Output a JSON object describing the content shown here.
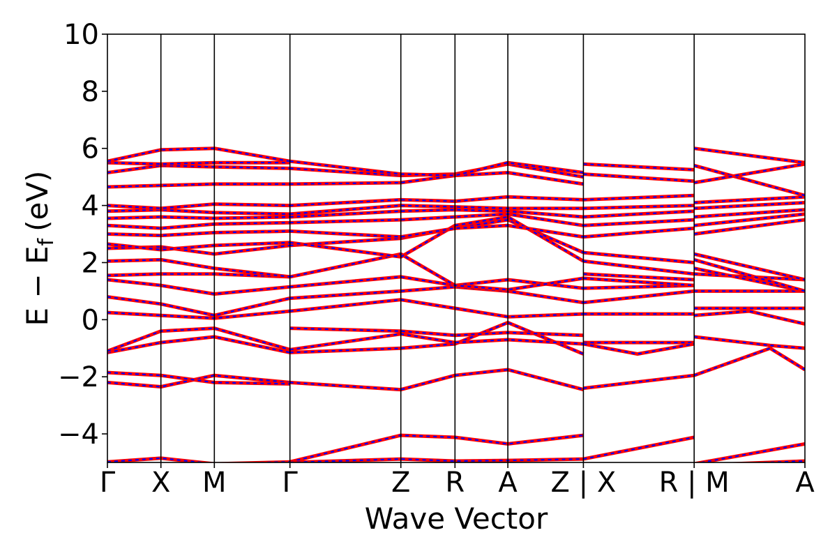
{
  "chart_data": {
    "type": "line",
    "xlabel": "Wave Vector",
    "ylabel_main": "E − E",
    "ylabel_sub": "f",
    "ylabel_unit": "(eV)",
    "ylim": [
      -5,
      10
    ],
    "yticks": [
      10,
      8,
      6,
      4,
      2,
      0,
      -2,
      -4
    ],
    "ytick_labels": [
      "10",
      "8",
      "6",
      "4",
      "2",
      "0",
      "−2",
      "−4"
    ],
    "xlim": [
      0,
      1
    ],
    "kpath_labels": [
      "Γ",
      "X",
      "M",
      "Γ",
      "Z",
      "R",
      "A",
      "Z | X",
      "R | M",
      "A"
    ],
    "kpath_positions": [
      0,
      0.0767,
      0.1533,
      0.2617,
      0.4207,
      0.4983,
      0.5741,
      0.6824,
      0.8412,
      1.0
    ],
    "line_colors": {
      "primary": "#ff0000",
      "overlay": "#0000ff"
    },
    "overlay_style": "dashed",
    "grid": false,
    "legend": "none",
    "bands": [
      {
        "x": [
          0,
          0.0767,
          0.1533,
          0.2617
        ],
        "y": [
          -4.98,
          -4.85,
          -5.05,
          -4.98
        ]
      },
      {
        "x": [
          0.2617,
          0.4207,
          0.4983,
          0.5741,
          0.6824
        ],
        "y": [
          -4.98,
          -4.05,
          -4.12,
          -4.35,
          -4.05
        ]
      },
      {
        "x": [
          0.2617,
          0.4207,
          0.4983,
          0.5741,
          0.6824
        ],
        "y": [
          -5.0,
          -4.88,
          -4.95,
          -4.93,
          -4.88
        ]
      },
      {
        "x": [
          0.6824,
          0.8412
        ],
        "y": [
          -4.88,
          -4.12
        ]
      },
      {
        "x": [
          0.8412,
          1.0
        ],
        "y": [
          -5.05,
          -4.35
        ]
      },
      {
        "x": [
          0.8412,
          1.0
        ],
        "y": [
          -5.1,
          -4.95
        ]
      },
      {
        "x": [
          0,
          0.0767,
          0.1533,
          0.2617
        ],
        "y": [
          -2.2,
          -2.35,
          -1.95,
          -2.2
        ]
      },
      {
        "x": [
          0,
          0.0767,
          0.1533,
          0.2617
        ],
        "y": [
          -1.85,
          -1.95,
          -2.2,
          -2.25
        ]
      },
      {
        "x": [
          0,
          0.0767,
          0.1533,
          0.2617
        ],
        "y": [
          -1.15,
          -0.8,
          -0.6,
          -1.15
        ]
      },
      {
        "x": [
          0,
          0.0767,
          0.1533,
          0.2617
        ],
        "y": [
          -1.1,
          -0.4,
          -0.3,
          -1.05
        ]
      },
      {
        "x": [
          0.2617,
          0.4207,
          0.4983,
          0.5741,
          0.6824
        ],
        "y": [
          -2.2,
          -2.45,
          -1.95,
          -1.75,
          -2.45
        ]
      },
      {
        "x": [
          0.2617,
          0.4207,
          0.4983,
          0.5741,
          0.6824
        ],
        "y": [
          -1.15,
          -1.0,
          -0.85,
          -0.1,
          -1.2
        ]
      },
      {
        "x": [
          0.2617,
          0.4207,
          0.4983,
          0.5741,
          0.6824
        ],
        "y": [
          -1.05,
          -0.5,
          -0.8,
          -0.7,
          -0.85
        ]
      },
      {
        "x": [
          0.2617,
          0.4207,
          0.4983,
          0.5741,
          0.6824
        ],
        "y": [
          -0.3,
          -0.4,
          -0.55,
          -0.45,
          -0.55
        ]
      },
      {
        "x": [
          0.6824,
          0.8412
        ],
        "y": [
          -2.4,
          -1.95
        ]
      },
      {
        "x": [
          0.6824,
          0.8412
        ],
        "y": [
          -0.8,
          -0.8
        ]
      },
      {
        "x": [
          0.6824,
          0.76,
          0.8412
        ],
        "y": [
          -0.85,
          -1.2,
          -0.85
        ]
      },
      {
        "x": [
          0.8412,
          0.95,
          1.0
        ],
        "y": [
          -1.95,
          -1.0,
          -1.75
        ]
      },
      {
        "x": [
          0.8412,
          0.95,
          1.0
        ],
        "y": [
          -0.6,
          -0.9,
          -1.0
        ]
      },
      {
        "x": [
          0.8412,
          0.92,
          1.0
        ],
        "y": [
          0.15,
          0.3,
          -0.15
        ]
      },
      {
        "x": [
          0,
          0.0767,
          0.1533,
          0.2617
        ],
        "y": [
          0.25,
          0.15,
          0.05,
          0.3
        ]
      },
      {
        "x": [
          0,
          0.0767,
          0.1533,
          0.2617
        ],
        "y": [
          0.8,
          0.55,
          0.15,
          0.75
        ]
      },
      {
        "x": [
          0,
          0.0767,
          0.1533,
          0.2617
        ],
        "y": [
          1.4,
          1.2,
          0.9,
          1.15
        ]
      },
      {
        "x": [
          0.2617,
          0.4207,
          0.4983,
          0.5741,
          0.6824
        ],
        "y": [
          0.3,
          0.7,
          0.4,
          0.1,
          0.2
        ]
      },
      {
        "x": [
          0.2617,
          0.4207,
          0.4983,
          0.5741,
          0.6824
        ],
        "y": [
          0.75,
          1.0,
          1.15,
          1.0,
          0.6
        ]
      },
      {
        "x": [
          0.2617,
          0.4207,
          0.4983,
          0.5741,
          0.6824
        ],
        "y": [
          1.15,
          1.5,
          1.2,
          1.4,
          1.1
        ]
      },
      {
        "x": [
          0.6824,
          0.8412
        ],
        "y": [
          0.2,
          0.2
        ]
      },
      {
        "x": [
          0.6824,
          0.8412
        ],
        "y": [
          0.6,
          1.0
        ]
      },
      {
        "x": [
          0.6824,
          0.8412
        ],
        "y": [
          1.1,
          1.2
        ]
      },
      {
        "x": [
          0.8412,
          1.0
        ],
        "y": [
          0.4,
          0.4
        ]
      },
      {
        "x": [
          0.8412,
          1.0
        ],
        "y": [
          1.0,
          1.0
        ]
      },
      {
        "x": [
          0,
          0.0767,
          0.1533,
          0.2617
        ],
        "y": [
          1.55,
          1.6,
          1.6,
          1.5
        ]
      },
      {
        "x": [
          0,
          0.0767,
          0.1533,
          0.2617
        ],
        "y": [
          2.05,
          2.1,
          1.8,
          1.5
        ]
      },
      {
        "x": [
          0,
          0.0767,
          0.1533,
          0.2617
        ],
        "y": [
          2.5,
          2.55,
          2.3,
          2.6
        ]
      },
      {
        "x": [
          0,
          0.0767,
          0.1533,
          0.2617
        ],
        "y": [
          2.65,
          2.45,
          2.6,
          2.7
        ]
      },
      {
        "x": [
          0.2617,
          0.4207,
          0.4983,
          0.5741,
          0.6824
        ],
        "y": [
          1.5,
          2.3,
          1.2,
          1.05,
          1.45
        ]
      },
      {
        "x": [
          0.2617,
          0.4207,
          0.4983,
          0.5741,
          0.6824
        ],
        "y": [
          2.6,
          2.85,
          3.2,
          3.5,
          2.35
        ]
      },
      {
        "x": [
          0.2617,
          0.4207,
          0.4983,
          0.5741,
          0.6824
        ],
        "y": [
          2.7,
          2.2,
          3.3,
          3.6,
          2.05
        ]
      },
      {
        "x": [
          0.6824,
          0.8412
        ],
        "y": [
          1.45,
          1.2
        ]
      },
      {
        "x": [
          0.6824,
          0.8412
        ],
        "y": [
          1.6,
          1.4
        ]
      },
      {
        "x": [
          0.6824,
          0.8412
        ],
        "y": [
          2.05,
          1.6
        ]
      },
      {
        "x": [
          0.6824,
          0.8412
        ],
        "y": [
          2.35,
          2.0
        ]
      },
      {
        "x": [
          0.8412,
          1.0
        ],
        "y": [
          1.6,
          1.4
        ]
      },
      {
        "x": [
          0.8412,
          1.0
        ],
        "y": [
          1.8,
          1.0
        ]
      },
      {
        "x": [
          0.8412,
          1.0
        ],
        "y": [
          2.1,
          1.0
        ]
      },
      {
        "x": [
          0.8412,
          1.0
        ],
        "y": [
          2.3,
          1.4
        ]
      },
      {
        "x": [
          0,
          0.0767,
          0.1533,
          0.2617
        ],
        "y": [
          3.0,
          2.95,
          3.05,
          3.1
        ]
      },
      {
        "x": [
          0,
          0.0767,
          0.1533,
          0.2617
        ],
        "y": [
          3.3,
          3.2,
          3.35,
          3.4
        ]
      },
      {
        "x": [
          0,
          0.0767,
          0.1533,
          0.2617
        ],
        "y": [
          3.55,
          3.6,
          3.55,
          3.6
        ]
      },
      {
        "x": [
          0,
          0.0767,
          0.1533,
          0.2617
        ],
        "y": [
          3.8,
          3.85,
          3.75,
          3.7
        ]
      },
      {
        "x": [
          0,
          0.0767,
          0.1533,
          0.2617
        ],
        "y": [
          4.0,
          3.9,
          4.05,
          4.0
        ]
      },
      {
        "x": [
          0.2617,
          0.4207,
          0.4983,
          0.5741,
          0.6824
        ],
        "y": [
          3.1,
          2.9,
          3.2,
          3.3,
          2.9
        ]
      },
      {
        "x": [
          0.2617,
          0.4207,
          0.4983,
          0.5741,
          0.6824
        ],
        "y": [
          3.4,
          3.5,
          3.6,
          3.7,
          3.3
        ]
      },
      {
        "x": [
          0.2617,
          0.4207,
          0.4983,
          0.5741,
          0.6824
        ],
        "y": [
          3.6,
          3.8,
          3.85,
          3.8,
          3.6
        ]
      },
      {
        "x": [
          0.2617,
          0.4207,
          0.4983,
          0.5741,
          0.6824
        ],
        "y": [
          3.7,
          4.0,
          3.95,
          3.9,
          3.9
        ]
      },
      {
        "x": [
          0.2617,
          0.4207,
          0.4983,
          0.5741,
          0.6824
        ],
        "y": [
          4.0,
          4.2,
          4.15,
          4.3,
          4.2
        ]
      },
      {
        "x": [
          0.6824,
          0.8412
        ],
        "y": [
          2.9,
          3.2
        ]
      },
      {
        "x": [
          0.6824,
          0.8412
        ],
        "y": [
          3.3,
          3.5
        ]
      },
      {
        "x": [
          0.6824,
          0.8412
        ],
        "y": [
          3.6,
          3.8
        ]
      },
      {
        "x": [
          0.6824,
          0.8412
        ],
        "y": [
          3.9,
          4.0
        ]
      },
      {
        "x": [
          0.6824,
          0.8412
        ],
        "y": [
          4.2,
          4.35
        ]
      },
      {
        "x": [
          0.8412,
          1.0
        ],
        "y": [
          3.0,
          3.5
        ]
      },
      {
        "x": [
          0.8412,
          1.0
        ],
        "y": [
          3.3,
          3.7
        ]
      },
      {
        "x": [
          0.8412,
          1.0
        ],
        "y": [
          3.6,
          3.85
        ]
      },
      {
        "x": [
          0.8412,
          1.0
        ],
        "y": [
          3.9,
          4.1
        ]
      },
      {
        "x": [
          0.8412,
          1.0
        ],
        "y": [
          4.1,
          4.3
        ]
      },
      {
        "x": [
          0,
          0.0767,
          0.1533,
          0.2617
        ],
        "y": [
          4.65,
          4.7,
          4.75,
          4.75
        ]
      },
      {
        "x": [
          0,
          0.0767,
          0.1533,
          0.2617
        ],
        "y": [
          5.15,
          5.4,
          5.35,
          5.3
        ]
      },
      {
        "x": [
          0,
          0.0767,
          0.1533,
          0.2617
        ],
        "y": [
          5.5,
          5.45,
          5.5,
          5.5
        ]
      },
      {
        "x": [
          0,
          0.0767,
          0.1533,
          0.2617
        ],
        "y": [
          5.55,
          5.95,
          6.0,
          5.55
        ]
      },
      {
        "x": [
          0.2617,
          0.4207,
          0.4983,
          0.5741,
          0.6824
        ],
        "y": [
          4.75,
          4.8,
          5.05,
          5.15,
          4.75
        ]
      },
      {
        "x": [
          0.2617,
          0.4207,
          0.4983,
          0.5741,
          0.6824
        ],
        "y": [
          5.3,
          5.05,
          5.1,
          5.45,
          5.0
        ]
      },
      {
        "x": [
          0.2617,
          0.4207,
          0.4983,
          0.5741,
          0.6824
        ],
        "y": [
          5.55,
          5.1,
          5.05,
          5.5,
          5.15
        ]
      },
      {
        "x": [
          0.6824,
          0.8412
        ],
        "y": [
          5.45,
          5.25
        ]
      },
      {
        "x": [
          0.6824,
          0.8412
        ],
        "y": [
          5.1,
          4.85
        ]
      },
      {
        "x": [
          0.8412,
          1.0
        ],
        "y": [
          6.0,
          5.5
        ]
      },
      {
        "x": [
          0.8412,
          1.0
        ],
        "y": [
          5.4,
          4.35
        ]
      },
      {
        "x": [
          0.8412,
          1.0
        ],
        "y": [
          4.8,
          5.45
        ]
      }
    ]
  }
}
